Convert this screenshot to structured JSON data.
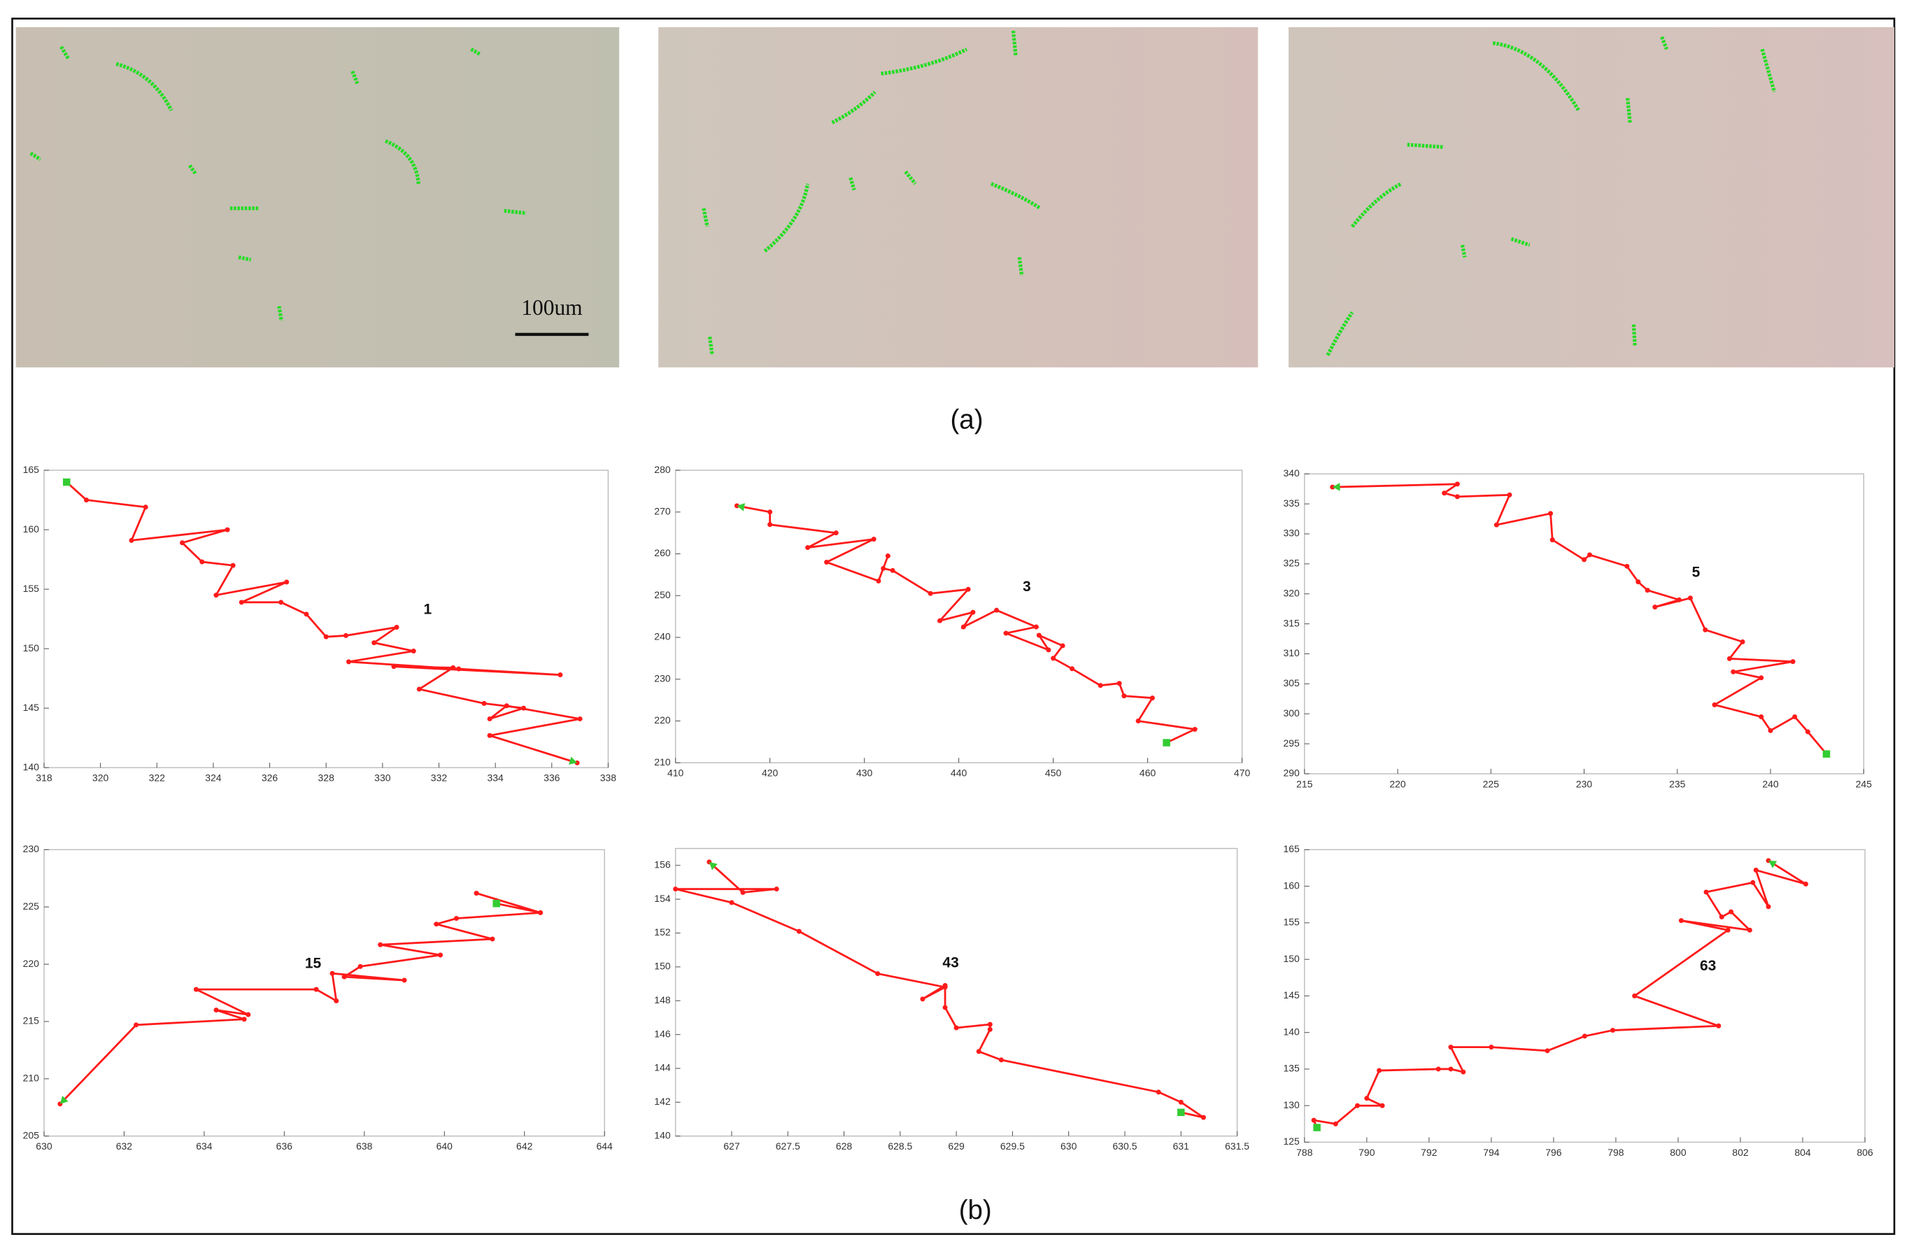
{
  "panel_a": {
    "scale_bar_label": "100um",
    "caption": "(a)"
  },
  "panel_b": {
    "caption": "(b)"
  },
  "chart_data": [
    {
      "type": "line",
      "annotation": "1",
      "color": "#ff1a1a",
      "marker_color": "#33cc33",
      "xlim": [
        318,
        338
      ],
      "xticks": [
        318,
        320,
        322,
        324,
        326,
        328,
        330,
        332,
        334,
        336,
        338
      ],
      "ylim": [
        140,
        165
      ],
      "yticks": [
        140,
        145,
        150,
        155,
        160,
        165
      ],
      "x": [
        318.8,
        319.5,
        321.6,
        321.1,
        324.5,
        322.9,
        323.6,
        324.7,
        324.1,
        326.6,
        325.0,
        326.4,
        327.3,
        328.0,
        328.7,
        330.5,
        329.7,
        331.1,
        328.8,
        332.7,
        336.3,
        330.4,
        332.5,
        331.3,
        333.6,
        335.0,
        333.8,
        334.4,
        337.0,
        333.8,
        336.9
      ],
      "values": [
        164,
        162.5,
        161.9,
        159.1,
        160,
        158.9,
        157.3,
        157,
        154.5,
        155.6,
        153.9,
        153.9,
        152.9,
        151,
        151.1,
        151.8,
        150.5,
        149.8,
        148.9,
        148.3,
        147.8,
        148.5,
        148.4,
        146.6,
        145.4,
        145,
        144.1,
        145.2,
        144.1,
        142.7,
        140.4
      ]
    },
    {
      "type": "line",
      "annotation": "3",
      "color": "#ff1a1a",
      "marker_color": "#33cc33",
      "xlim": [
        410,
        470
      ],
      "xticks": [
        410,
        420,
        430,
        440,
        450,
        460,
        470
      ],
      "ylim": [
        210,
        280
      ],
      "yticks": [
        210,
        220,
        230,
        240,
        250,
        260,
        270,
        280
      ],
      "x": [
        462,
        465,
        459,
        460.5,
        457.5,
        457,
        455,
        452,
        450,
        451,
        448.5,
        449.5,
        445,
        448.2,
        444,
        440.5,
        441.5,
        438,
        441,
        437,
        433,
        432,
        432.5,
        431.5,
        426,
        431,
        424,
        427,
        420,
        420,
        416.5
      ],
      "values": [
        214.8,
        218,
        220,
        225.5,
        226,
        229,
        228.5,
        232.5,
        235,
        238,
        240.5,
        237,
        241,
        242.5,
        246.5,
        242.5,
        246,
        244,
        251.5,
        250.5,
        256,
        256.5,
        259.5,
        253.5,
        258,
        263.5,
        261.5,
        265,
        267,
        270,
        271.5
      ]
    },
    {
      "type": "line",
      "annotation": "5",
      "color": "#ff1a1a",
      "marker_color": "#33cc33",
      "xlim": [
        215,
        245
      ],
      "xticks": [
        215,
        220,
        225,
        230,
        235,
        240,
        245
      ],
      "ylim": [
        290,
        340
      ],
      "yticks": [
        290,
        295,
        300,
        305,
        310,
        315,
        320,
        325,
        330,
        335,
        340
      ],
      "x": [
        243,
        242,
        241.3,
        240,
        239.5,
        237,
        239.5,
        238,
        241.2,
        237.8,
        238.5,
        236.5,
        235.7,
        233.8,
        235.1,
        233.4,
        232.9,
        232.3,
        230.3,
        230,
        228.3,
        228.2,
        225.3,
        226,
        223.2,
        222.5,
        223.2,
        216.5
      ],
      "values": [
        293.3,
        297,
        299.5,
        297.2,
        299.5,
        301.5,
        306,
        307,
        308.7,
        309.2,
        312,
        314,
        319.3,
        317.8,
        319,
        320.6,
        322,
        324.6,
        326.5,
        325.7,
        329,
        333.4,
        331.5,
        336.5,
        336.2,
        336.8,
        338.3,
        337.8
      ]
    },
    {
      "type": "line",
      "annotation": "15",
      "color": "#ff1a1a",
      "marker_color": "#33cc33",
      "xlim": [
        630,
        644
      ],
      "xticks": [
        630,
        632,
        634,
        636,
        638,
        640,
        642,
        644
      ],
      "ylim": [
        205,
        230
      ],
      "yticks": [
        205,
        210,
        215,
        220,
        225,
        230
      ],
      "x": [
        641.3,
        642.4,
        640.8,
        642.4,
        640.3,
        639.8,
        641.2,
        638.4,
        639.9,
        637.9,
        637.5,
        639,
        637.2,
        637.3,
        636.8,
        633.8,
        635.1,
        634.3,
        635,
        632.3,
        630.4
      ],
      "values": [
        225.3,
        224.5,
        226.2,
        224.5,
        224,
        223.5,
        222.2,
        221.7,
        220.8,
        219.8,
        218.9,
        218.6,
        219.2,
        216.8,
        217.8,
        217.8,
        215.6,
        216,
        215.2,
        214.7,
        207.8
      ]
    },
    {
      "type": "line",
      "annotation": "43",
      "color": "#ff1a1a",
      "marker_color": "#33cc33",
      "xlim": [
        626.5,
        631.5
      ],
      "xticks": [
        627,
        627.5,
        628,
        628.5,
        629,
        629.5,
        630,
        630.5,
        631,
        631.5
      ],
      "ylim": [
        140,
        157
      ],
      "yticks": [
        140,
        142,
        144,
        146,
        148,
        150,
        152,
        154,
        156
      ],
      "x": [
        631,
        631.2,
        631,
        630.8,
        629.4,
        629.2,
        629.3,
        629.3,
        629,
        628.9,
        628.9,
        628.7,
        628.9,
        628.3,
        627.6,
        627,
        626.5,
        627.4,
        627.1,
        626.8
      ],
      "values": [
        141.4,
        141.1,
        142,
        142.6,
        144.5,
        145,
        146.3,
        146.6,
        146.4,
        147.6,
        148.9,
        148.1,
        148.8,
        149.6,
        152.1,
        153.8,
        154.6,
        154.6,
        154.4,
        156.2
      ]
    },
    {
      "type": "line",
      "annotation": "63",
      "color": "#ff1a1a",
      "marker_color": "#33cc33",
      "xlim": [
        788,
        806
      ],
      "xticks": [
        788,
        790,
        792,
        794,
        796,
        798,
        800,
        802,
        804,
        806
      ],
      "ylim": [
        125,
        165
      ],
      "yticks": [
        125,
        130,
        135,
        140,
        145,
        150,
        155,
        160,
        165
      ],
      "x": [
        788.4,
        788.3,
        789,
        789.7,
        790.5,
        790,
        790.4,
        792.3,
        792.7,
        793.1,
        792.7,
        794,
        795.8,
        797,
        797.9,
        801.3,
        798.6,
        801.6,
        800.1,
        802.3,
        801.7,
        801.4,
        800.9,
        802.4,
        802.9,
        802.5,
        804.1,
        802.9
      ],
      "values": [
        127,
        128,
        127.5,
        130,
        130,
        131,
        134.8,
        135,
        135,
        134.6,
        138,
        138,
        137.5,
        139.5,
        140.3,
        140.9,
        145,
        154,
        155.3,
        154,
        156.5,
        155.8,
        159.2,
        160.5,
        157.2,
        162.2,
        160.3,
        163.5
      ]
    }
  ]
}
